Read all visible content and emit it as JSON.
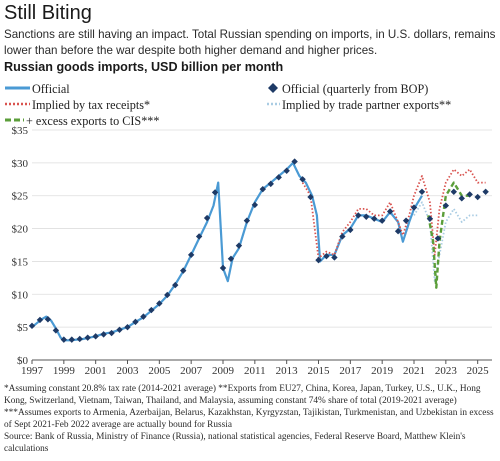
{
  "header": {
    "title": "Still Biting",
    "subtitle": "Sanctions are still having an impact. Total Russian spending on imports, in U.S. dollars, remains lower than before the war despite both higher demand and higher prices.",
    "chart_heading": "Russian goods imports, USD billion per month"
  },
  "legend": {
    "official": "Official",
    "official_quarterly": "Official (quarterly from BOP)",
    "tax_receipts": "Implied by tax receipts*",
    "trade_partner": "Implied by trade partner exports**",
    "cis": "+ excess exports to CIS***"
  },
  "colors": {
    "official": "#4a9ad4",
    "official_quarterly": "#1e3a66",
    "tax_receipts": "#d9534f",
    "trade_partner": "#a9cce3",
    "cis": "#5b9e3a",
    "grid": "#dedede",
    "axis": "#555555"
  },
  "chart_data": {
    "type": "line",
    "title": "Russian goods imports, USD billion per month",
    "y_unit": "USD billion per month",
    "xlim": [
      1997,
      2025.9
    ],
    "ylim": [
      0,
      35
    ],
    "x_ticks": [
      "1997",
      "1999",
      "2001",
      "2003",
      "2005",
      "2007",
      "2009",
      "2011",
      "2013",
      "2015",
      "2017",
      "2019",
      "2021",
      "2023",
      "2025"
    ],
    "y_ticks": [
      "$0",
      "$5",
      "$10",
      "$15",
      "$20",
      "$25",
      "$30",
      "$35"
    ],
    "grid": "horizontal",
    "series": [
      {
        "name": "Official",
        "style": "line",
        "x": [
          1997,
          1997.3,
          1997.6,
          1997.9,
          1998.2,
          1998.5,
          1998.8,
          1999,
          1999.4,
          1999.8,
          2000.2,
          2000.6,
          2001,
          2001.5,
          2002,
          2002.5,
          2003,
          2003.5,
          2004,
          2004.5,
          2005,
          2005.5,
          2006,
          2006.5,
          2007,
          2007.5,
          2008,
          2008.4,
          2008.7,
          2009,
          2009.3,
          2009.6,
          2010,
          2010.5,
          2011,
          2011.5,
          2012,
          2012.5,
          2013,
          2013.4,
          2013.8,
          2014.2,
          2014.6,
          2014.9,
          2015.1,
          2015.5,
          2016,
          2016.5,
          2017,
          2017.5,
          2018,
          2018.5,
          2019,
          2019.5,
          2020,
          2020.3,
          2020.7,
          2021,
          2021.5
        ],
        "y": [
          5,
          5.6,
          6.2,
          6.6,
          6,
          4.8,
          3.4,
          3,
          3,
          3.1,
          3.2,
          3.4,
          3.6,
          4,
          4.2,
          4.6,
          5,
          5.8,
          6.5,
          7.5,
          8.5,
          9.8,
          11.5,
          13.5,
          16,
          18.5,
          21,
          23.5,
          27,
          14,
          12,
          15.5,
          17,
          21,
          24,
          26,
          27,
          28,
          29,
          30,
          28,
          27,
          25,
          22,
          15,
          16,
          16,
          19,
          20,
          22,
          22,
          21.5,
          21,
          22.5,
          21,
          18,
          21,
          23,
          25
        ]
      },
      {
        "name": "Official (quarterly from BOP)",
        "style": "markers",
        "x": [
          1997,
          1997.5,
          1998,
          1998.5,
          1999,
          1999.5,
          2000,
          2000.5,
          2001,
          2001.5,
          2002,
          2002.5,
          2003,
          2003.5,
          2004,
          2004.5,
          2005,
          2005.5,
          2006,
          2006.5,
          2007,
          2007.5,
          2008,
          2008.5,
          2009,
          2009.5,
          2010,
          2010.5,
          2011,
          2011.5,
          2012,
          2012.5,
          2013,
          2013.5,
          2014,
          2014.5,
          2015,
          2015.5,
          2016,
          2016.5,
          2017,
          2017.5,
          2018,
          2018.5,
          2019,
          2019.5,
          2020,
          2020.5,
          2021,
          2021.5,
          2022,
          2022.5,
          2023,
          2023.5,
          2024,
          2024.5,
          2025,
          2025.5
        ],
        "y": [
          5.2,
          6.1,
          6.2,
          4.5,
          3.1,
          3.1,
          3.2,
          3.4,
          3.6,
          3.9,
          4.1,
          4.6,
          5,
          5.8,
          6.6,
          7.6,
          8.6,
          9.9,
          11.4,
          13.6,
          16,
          18.8,
          21.6,
          25.5,
          14,
          15.4,
          17.4,
          21.2,
          23.6,
          26,
          26.8,
          27.8,
          28.8,
          30.2,
          27.5,
          24.8,
          15.2,
          15.8,
          15.6,
          18.8,
          19.8,
          22,
          21.8,
          21.5,
          21.2,
          22.6,
          19.6,
          21.2,
          23.2,
          25.6,
          21.5,
          18.5,
          23.5,
          25.6,
          24.6,
          25.2,
          24.8,
          25.6
        ]
      },
      {
        "name": "Implied by tax receipts*",
        "style": "dotted",
        "x": [
          2014,
          2014.5,
          2015,
          2015.5,
          2016,
          2016.5,
          2017,
          2017.5,
          2018,
          2018.5,
          2019,
          2019.5,
          2020,
          2020.3,
          2020.7,
          2021,
          2021.5,
          2022,
          2022.3,
          2022.6,
          2023,
          2023.5,
          2024,
          2024.5,
          2025,
          2025.5
        ],
        "y": [
          27,
          25,
          15.5,
          16.5,
          16,
          19.5,
          21,
          23,
          23,
          22,
          22,
          24,
          21,
          19,
          22,
          25,
          28,
          24,
          16,
          23,
          27,
          29,
          28,
          29,
          27,
          27
        ]
      },
      {
        "name": "Implied by trade partner exports**",
        "style": "dotted",
        "x": [
          2021,
          2021.5,
          2022,
          2022.3,
          2022.6,
          2023,
          2023.5,
          2024,
          2024.5,
          2025
        ],
        "y": [
          22,
          24,
          21,
          12,
          16,
          21,
          23,
          21,
          22,
          22
        ]
      },
      {
        "name": "+ excess exports to CIS***",
        "style": "dashed",
        "x": [
          2021.9,
          2022.2,
          2022.4,
          2022.6,
          2023,
          2023.5,
          2024,
          2024.5
        ],
        "y": [
          22,
          18,
          11,
          18,
          25,
          27,
          25,
          25
        ]
      }
    ]
  },
  "footnote": "*Assuming constant 20.8% tax rate (2014-2021 average) **Exports from EU27, China, Korea, Japan, Turkey, U.S., U.K., Hong Kong, Switzerland, Vietnam, Taiwan, Thailand, and Malaysia, assuming constant 74% share of total (2019-2021 average) ***Assumes exports to Armenia, Azerbaijan, Belarus, Kazakhstan, Kyrgyzstan, Tajikistan, Turkmenistan, and Uzbekistan in excess of Sept 2021-Feb 2022 average are actually bound for Russia",
  "source": "Source: Bank of Russia, Ministry of Finance (Russia), national statistical agencies, Federal Reserve Board, Matthew Klein's calculations"
}
